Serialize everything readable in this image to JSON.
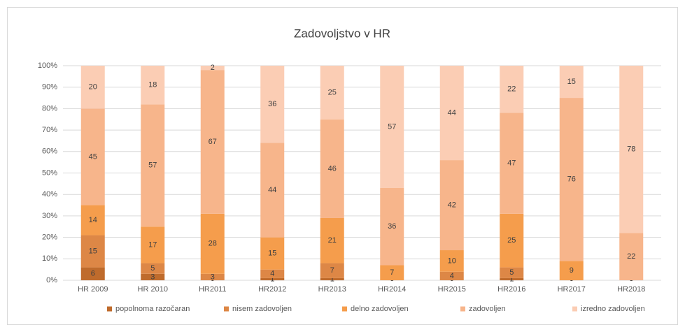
{
  "chart_data": {
    "type": "bar",
    "stacked": true,
    "title": "Zadovoljstvo v HR",
    "categories": [
      "HR 2009",
      "HR 2010",
      "HR2011",
      "HR2012",
      "HR2013",
      "HR2014",
      "HR2015",
      "HR2016",
      "HR2017",
      "HR2018"
    ],
    "series": [
      {
        "name": "popolnoma razočaran",
        "color": "#bf6b2c",
        "values": [
          6,
          3,
          0,
          1,
          1,
          0,
          0,
          1,
          0,
          0
        ]
      },
      {
        "name": "nisem zadovoljen",
        "color": "#dd8746",
        "values": [
          15,
          5,
          3,
          4,
          7,
          0,
          4,
          5,
          0,
          0
        ]
      },
      {
        "name": "delno zadovoljen",
        "color": "#f59d4c",
        "values": [
          14,
          17,
          28,
          15,
          21,
          7,
          10,
          25,
          9,
          0
        ]
      },
      {
        "name": "zadovoljen",
        "color": "#f7b58b",
        "values": [
          45,
          57,
          67,
          44,
          46,
          36,
          42,
          47,
          76,
          22
        ]
      },
      {
        "name": "izredno zadovoljen",
        "color": "#fbcdb4",
        "values": [
          20,
          18,
          2,
          36,
          25,
          57,
          44,
          22,
          15,
          78
        ]
      }
    ],
    "ylim": [
      0,
      100
    ],
    "yticks": [
      {
        "value": 0,
        "label": "0%"
      },
      {
        "value": 10,
        "label": "10%"
      },
      {
        "value": 20,
        "label": "20%"
      },
      {
        "value": 30,
        "label": "30%"
      },
      {
        "value": 40,
        "label": "40%"
      },
      {
        "value": 50,
        "label": "50%"
      },
      {
        "value": 60,
        "label": "60%"
      },
      {
        "value": 70,
        "label": "70%"
      },
      {
        "value": 80,
        "label": "80%"
      },
      {
        "value": 90,
        "label": "90%"
      },
      {
        "value": 100,
        "label": "100%"
      }
    ],
    "grid": true,
    "legend": "bottom"
  }
}
